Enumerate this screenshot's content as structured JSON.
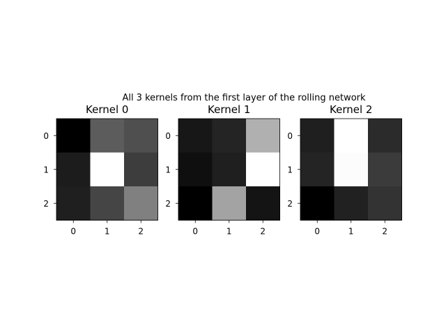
{
  "suptitle": "All 3 kernels from the first layer of the rolling network",
  "chart_data": [
    {
      "type": "heatmap",
      "title": "Kernel 0",
      "colormap": "gray",
      "x_ticks": [
        "0",
        "1",
        "2"
      ],
      "y_ticks": [
        "0",
        "1",
        "2"
      ],
      "values": [
        [
          0.0,
          0.36,
          0.31
        ],
        [
          0.11,
          1.0,
          0.24
        ],
        [
          0.12,
          0.27,
          0.5
        ]
      ]
    },
    {
      "type": "heatmap",
      "title": "Kernel 1",
      "colormap": "gray",
      "x_ticks": [
        "0",
        "1",
        "2"
      ],
      "y_ticks": [
        "0",
        "1",
        "2"
      ],
      "values": [
        [
          0.09,
          0.14,
          0.69
        ],
        [
          0.06,
          0.12,
          1.0
        ],
        [
          0.0,
          0.64,
          0.08
        ]
      ]
    },
    {
      "type": "heatmap",
      "title": "Kernel 2",
      "colormap": "gray",
      "x_ticks": [
        "0",
        "1",
        "2"
      ],
      "y_ticks": [
        "0",
        "1",
        "2"
      ],
      "values": [
        [
          0.12,
          1.0,
          0.17
        ],
        [
          0.14,
          0.99,
          0.23
        ],
        [
          0.0,
          0.13,
          0.2
        ]
      ]
    }
  ]
}
